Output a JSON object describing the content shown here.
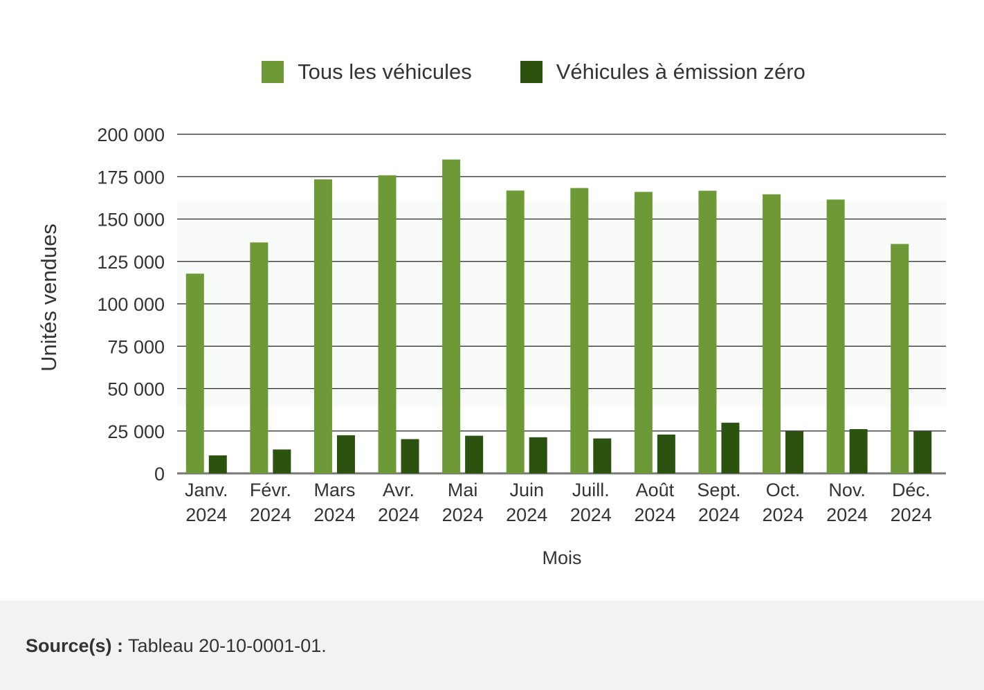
{
  "chart_data": {
    "type": "bar",
    "title": "",
    "xlabel": "Mois",
    "ylabel": "Unités vendues",
    "ylim": [
      0,
      200000
    ],
    "yticks": [
      0,
      25000,
      50000,
      75000,
      100000,
      125000,
      150000,
      175000,
      200000
    ],
    "ytick_labels": [
      "0",
      "25 000",
      "50 000",
      "75 000",
      "100 000",
      "125 000",
      "150 000",
      "175 000",
      "200 000"
    ],
    "categories": [
      [
        "Janv.",
        "2024"
      ],
      [
        "Févr.",
        "2024"
      ],
      [
        "Mars",
        "2024"
      ],
      [
        "Avr.",
        "2024"
      ],
      [
        "Mai",
        "2024"
      ],
      [
        "Juin",
        "2024"
      ],
      [
        "Juill.",
        "2024"
      ],
      [
        "Août",
        "2024"
      ],
      [
        "Sept.",
        "2024"
      ],
      [
        "Oct.",
        "2024"
      ],
      [
        "Nov.",
        "2024"
      ],
      [
        "Déc.",
        "2024"
      ]
    ],
    "series": [
      {
        "name": "Tous les véhicules",
        "color": "#6d9a37",
        "values": [
          117800,
          136200,
          173400,
          175800,
          185100,
          166800,
          168300,
          166000,
          166700,
          164600,
          161500,
          135300
        ]
      },
      {
        "name": "Véhicules à émission zéro",
        "color": "#2c520f",
        "values": [
          10600,
          14100,
          22500,
          20200,
          22200,
          21300,
          20600,
          22900,
          29900,
          24700,
          26100,
          24700
        ]
      }
    ],
    "grid": true,
    "legend_position": "top"
  },
  "footer": {
    "source_label": "Source(s) :",
    "source_text": "Tableau 20-10-0001-01."
  }
}
